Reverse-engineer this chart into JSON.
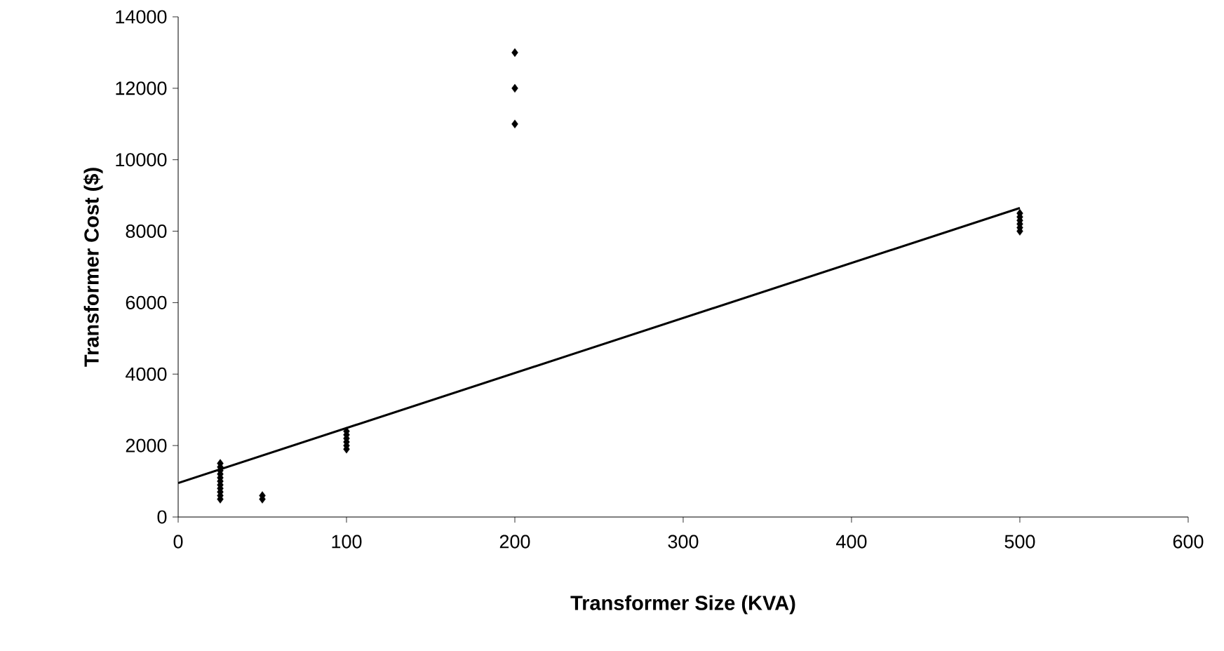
{
  "chart_data": {
    "type": "scatter",
    "xlabel": "Transformer Size (KVA)",
    "ylabel": "Transformer Cost ($)",
    "xlim": [
      0,
      600
    ],
    "xticks": [
      0,
      100,
      200,
      300,
      400,
      500,
      600
    ],
    "ylim": [
      0,
      14000
    ],
    "yticks": [
      0,
      2000,
      4000,
      6000,
      8000,
      10000,
      12000,
      14000
    ],
    "grid": false,
    "marker": "diamond",
    "series": [
      {
        "type": "scatter",
        "color": "#000000",
        "x": [
          25,
          25,
          25,
          25,
          25,
          25,
          25,
          25,
          25,
          25,
          25,
          50,
          50,
          100,
          100,
          100,
          100,
          100,
          100,
          200,
          200,
          200,
          500,
          500,
          500,
          500,
          500,
          500
        ],
        "values": [
          500,
          600,
          700,
          800,
          900,
          1000,
          1100,
          1200,
          1300,
          1400,
          1500,
          500,
          600,
          1900,
          2000,
          2100,
          2200,
          2300,
          2400,
          11000,
          12000,
          13000,
          8000,
          8100,
          8200,
          8300,
          8400,
          8500
        ]
      },
      {
        "type": "line",
        "color": "#000000",
        "marker": "none",
        "line_style": "solid",
        "x": [
          0,
          500
        ],
        "values": [
          950,
          8650
        ]
      }
    ]
  }
}
